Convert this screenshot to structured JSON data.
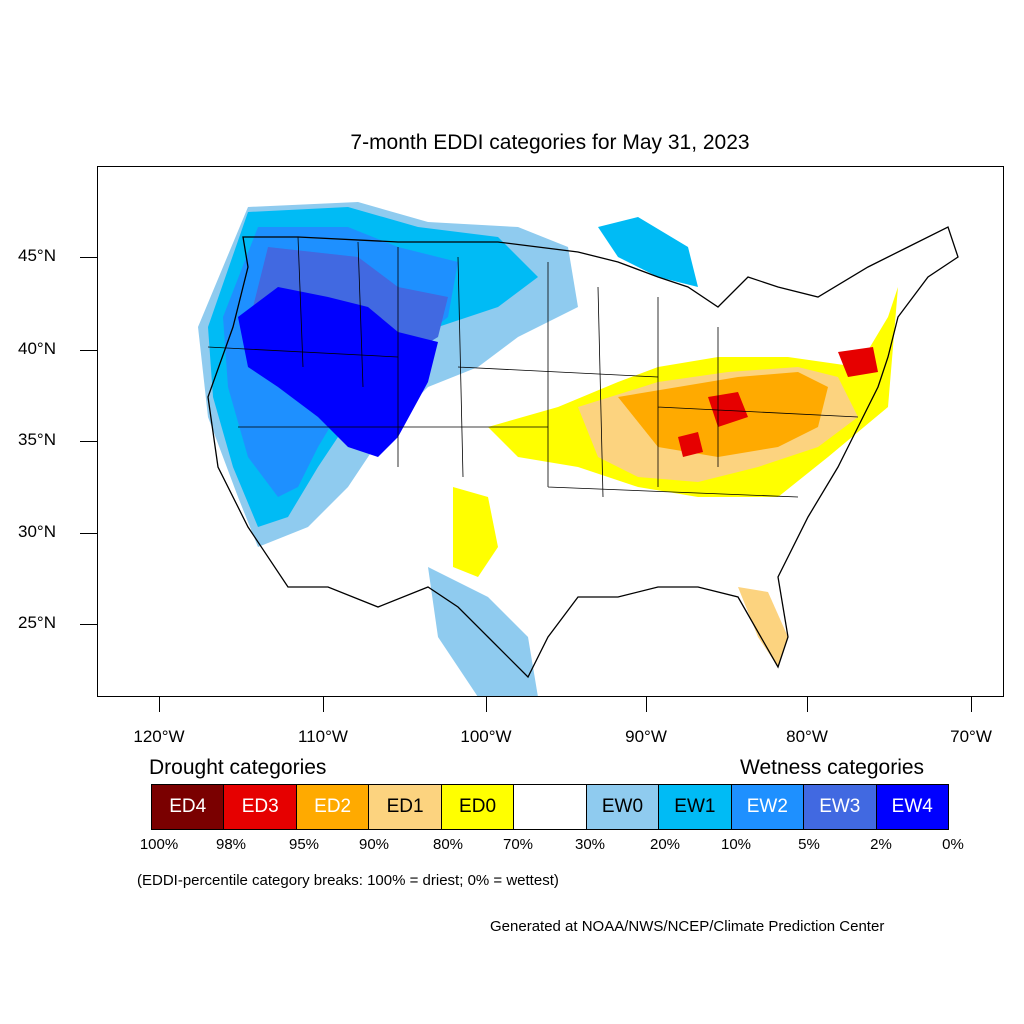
{
  "title": "7-month EDDI categories for May 31, 2023",
  "y_axis": {
    "labels": [
      "45°N",
      "40°N",
      "35°N",
      "30°N",
      "25°N"
    ]
  },
  "x_axis": {
    "labels": [
      "120°W",
      "110°W",
      "100°W",
      "90°W",
      "80°W",
      "70°W"
    ]
  },
  "legend": {
    "drought_title": "Drought categories",
    "wetness_title": "Wetness categories",
    "categories": [
      {
        "label": "ED4",
        "color": "#7a0000",
        "text_color": "#ffffff"
      },
      {
        "label": "ED3",
        "color": "#e60000",
        "text_color": "#ffffff"
      },
      {
        "label": "ED2",
        "color": "#ffaa00",
        "text_color": "#ffffff"
      },
      {
        "label": "ED1",
        "color": "#fcd37f",
        "text_color": "#000000"
      },
      {
        "label": "ED0",
        "color": "#ffff00",
        "text_color": "#000000"
      },
      {
        "label": "",
        "color": "#ffffff",
        "text_color": "#000000"
      },
      {
        "label": "EW0",
        "color": "#8fcbef",
        "text_color": "#000000"
      },
      {
        "label": "EW1",
        "color": "#00bbf5",
        "text_color": "#000000"
      },
      {
        "label": "EW2",
        "color": "#1e90ff",
        "text_color": "#ffffff"
      },
      {
        "label": "EW3",
        "color": "#4169e1",
        "text_color": "#ffffff"
      },
      {
        "label": "EW4",
        "color": "#0000ff",
        "text_color": "#ffffff"
      }
    ],
    "breaks": [
      "100%",
      "98%",
      "95%",
      "90%",
      "80%",
      "70%",
      "30%",
      "20%",
      "10%",
      "5%",
      "2%",
      "0%"
    ]
  },
  "note": "(EDDI-percentile category breaks: 100% = driest; 0% = wettest)",
  "credit": "Generated at NOAA/NWS/NCEP/Climate Prediction Center"
}
